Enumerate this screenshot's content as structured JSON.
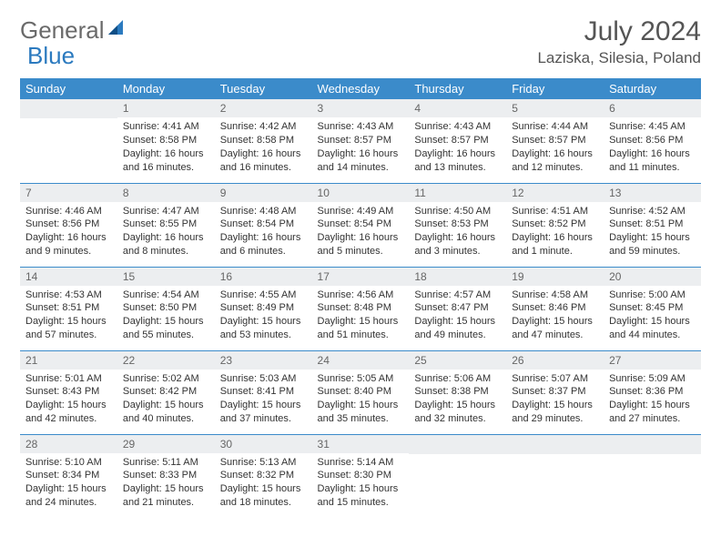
{
  "brand": {
    "part1": "General",
    "part2": "Blue"
  },
  "title": "July 2024",
  "location": "Laziska, Silesia, Poland",
  "colors": {
    "header_bg": "#3b8bca",
    "header_text": "#ffffff",
    "daynum_bg": "#eceef0",
    "border": "#3b8bca",
    "text": "#333333",
    "title_color": "#555555"
  },
  "weekdays": [
    "Sunday",
    "Monday",
    "Tuesday",
    "Wednesday",
    "Thursday",
    "Friday",
    "Saturday"
  ],
  "weeks": [
    [
      null,
      {
        "n": "1",
        "sr": "Sunrise: 4:41 AM",
        "ss": "Sunset: 8:58 PM",
        "dl1": "Daylight: 16 hours",
        "dl2": "and 16 minutes."
      },
      {
        "n": "2",
        "sr": "Sunrise: 4:42 AM",
        "ss": "Sunset: 8:58 PM",
        "dl1": "Daylight: 16 hours",
        "dl2": "and 16 minutes."
      },
      {
        "n": "3",
        "sr": "Sunrise: 4:43 AM",
        "ss": "Sunset: 8:57 PM",
        "dl1": "Daylight: 16 hours",
        "dl2": "and 14 minutes."
      },
      {
        "n": "4",
        "sr": "Sunrise: 4:43 AM",
        "ss": "Sunset: 8:57 PM",
        "dl1": "Daylight: 16 hours",
        "dl2": "and 13 minutes."
      },
      {
        "n": "5",
        "sr": "Sunrise: 4:44 AM",
        "ss": "Sunset: 8:57 PM",
        "dl1": "Daylight: 16 hours",
        "dl2": "and 12 minutes."
      },
      {
        "n": "6",
        "sr": "Sunrise: 4:45 AM",
        "ss": "Sunset: 8:56 PM",
        "dl1": "Daylight: 16 hours",
        "dl2": "and 11 minutes."
      }
    ],
    [
      {
        "n": "7",
        "sr": "Sunrise: 4:46 AM",
        "ss": "Sunset: 8:56 PM",
        "dl1": "Daylight: 16 hours",
        "dl2": "and 9 minutes."
      },
      {
        "n": "8",
        "sr": "Sunrise: 4:47 AM",
        "ss": "Sunset: 8:55 PM",
        "dl1": "Daylight: 16 hours",
        "dl2": "and 8 minutes."
      },
      {
        "n": "9",
        "sr": "Sunrise: 4:48 AM",
        "ss": "Sunset: 8:54 PM",
        "dl1": "Daylight: 16 hours",
        "dl2": "and 6 minutes."
      },
      {
        "n": "10",
        "sr": "Sunrise: 4:49 AM",
        "ss": "Sunset: 8:54 PM",
        "dl1": "Daylight: 16 hours",
        "dl2": "and 5 minutes."
      },
      {
        "n": "11",
        "sr": "Sunrise: 4:50 AM",
        "ss": "Sunset: 8:53 PM",
        "dl1": "Daylight: 16 hours",
        "dl2": "and 3 minutes."
      },
      {
        "n": "12",
        "sr": "Sunrise: 4:51 AM",
        "ss": "Sunset: 8:52 PM",
        "dl1": "Daylight: 16 hours",
        "dl2": "and 1 minute."
      },
      {
        "n": "13",
        "sr": "Sunrise: 4:52 AM",
        "ss": "Sunset: 8:51 PM",
        "dl1": "Daylight: 15 hours",
        "dl2": "and 59 minutes."
      }
    ],
    [
      {
        "n": "14",
        "sr": "Sunrise: 4:53 AM",
        "ss": "Sunset: 8:51 PM",
        "dl1": "Daylight: 15 hours",
        "dl2": "and 57 minutes."
      },
      {
        "n": "15",
        "sr": "Sunrise: 4:54 AM",
        "ss": "Sunset: 8:50 PM",
        "dl1": "Daylight: 15 hours",
        "dl2": "and 55 minutes."
      },
      {
        "n": "16",
        "sr": "Sunrise: 4:55 AM",
        "ss": "Sunset: 8:49 PM",
        "dl1": "Daylight: 15 hours",
        "dl2": "and 53 minutes."
      },
      {
        "n": "17",
        "sr": "Sunrise: 4:56 AM",
        "ss": "Sunset: 8:48 PM",
        "dl1": "Daylight: 15 hours",
        "dl2": "and 51 minutes."
      },
      {
        "n": "18",
        "sr": "Sunrise: 4:57 AM",
        "ss": "Sunset: 8:47 PM",
        "dl1": "Daylight: 15 hours",
        "dl2": "and 49 minutes."
      },
      {
        "n": "19",
        "sr": "Sunrise: 4:58 AM",
        "ss": "Sunset: 8:46 PM",
        "dl1": "Daylight: 15 hours",
        "dl2": "and 47 minutes."
      },
      {
        "n": "20",
        "sr": "Sunrise: 5:00 AM",
        "ss": "Sunset: 8:45 PM",
        "dl1": "Daylight: 15 hours",
        "dl2": "and 44 minutes."
      }
    ],
    [
      {
        "n": "21",
        "sr": "Sunrise: 5:01 AM",
        "ss": "Sunset: 8:43 PM",
        "dl1": "Daylight: 15 hours",
        "dl2": "and 42 minutes."
      },
      {
        "n": "22",
        "sr": "Sunrise: 5:02 AM",
        "ss": "Sunset: 8:42 PM",
        "dl1": "Daylight: 15 hours",
        "dl2": "and 40 minutes."
      },
      {
        "n": "23",
        "sr": "Sunrise: 5:03 AM",
        "ss": "Sunset: 8:41 PM",
        "dl1": "Daylight: 15 hours",
        "dl2": "and 37 minutes."
      },
      {
        "n": "24",
        "sr": "Sunrise: 5:05 AM",
        "ss": "Sunset: 8:40 PM",
        "dl1": "Daylight: 15 hours",
        "dl2": "and 35 minutes."
      },
      {
        "n": "25",
        "sr": "Sunrise: 5:06 AM",
        "ss": "Sunset: 8:38 PM",
        "dl1": "Daylight: 15 hours",
        "dl2": "and 32 minutes."
      },
      {
        "n": "26",
        "sr": "Sunrise: 5:07 AM",
        "ss": "Sunset: 8:37 PM",
        "dl1": "Daylight: 15 hours",
        "dl2": "and 29 minutes."
      },
      {
        "n": "27",
        "sr": "Sunrise: 5:09 AM",
        "ss": "Sunset: 8:36 PM",
        "dl1": "Daylight: 15 hours",
        "dl2": "and 27 minutes."
      }
    ],
    [
      {
        "n": "28",
        "sr": "Sunrise: 5:10 AM",
        "ss": "Sunset: 8:34 PM",
        "dl1": "Daylight: 15 hours",
        "dl2": "and 24 minutes."
      },
      {
        "n": "29",
        "sr": "Sunrise: 5:11 AM",
        "ss": "Sunset: 8:33 PM",
        "dl1": "Daylight: 15 hours",
        "dl2": "and 21 minutes."
      },
      {
        "n": "30",
        "sr": "Sunrise: 5:13 AM",
        "ss": "Sunset: 8:32 PM",
        "dl1": "Daylight: 15 hours",
        "dl2": "and 18 minutes."
      },
      {
        "n": "31",
        "sr": "Sunrise: 5:14 AM",
        "ss": "Sunset: 8:30 PM",
        "dl1": "Daylight: 15 hours",
        "dl2": "and 15 minutes."
      },
      null,
      null,
      null
    ]
  ]
}
